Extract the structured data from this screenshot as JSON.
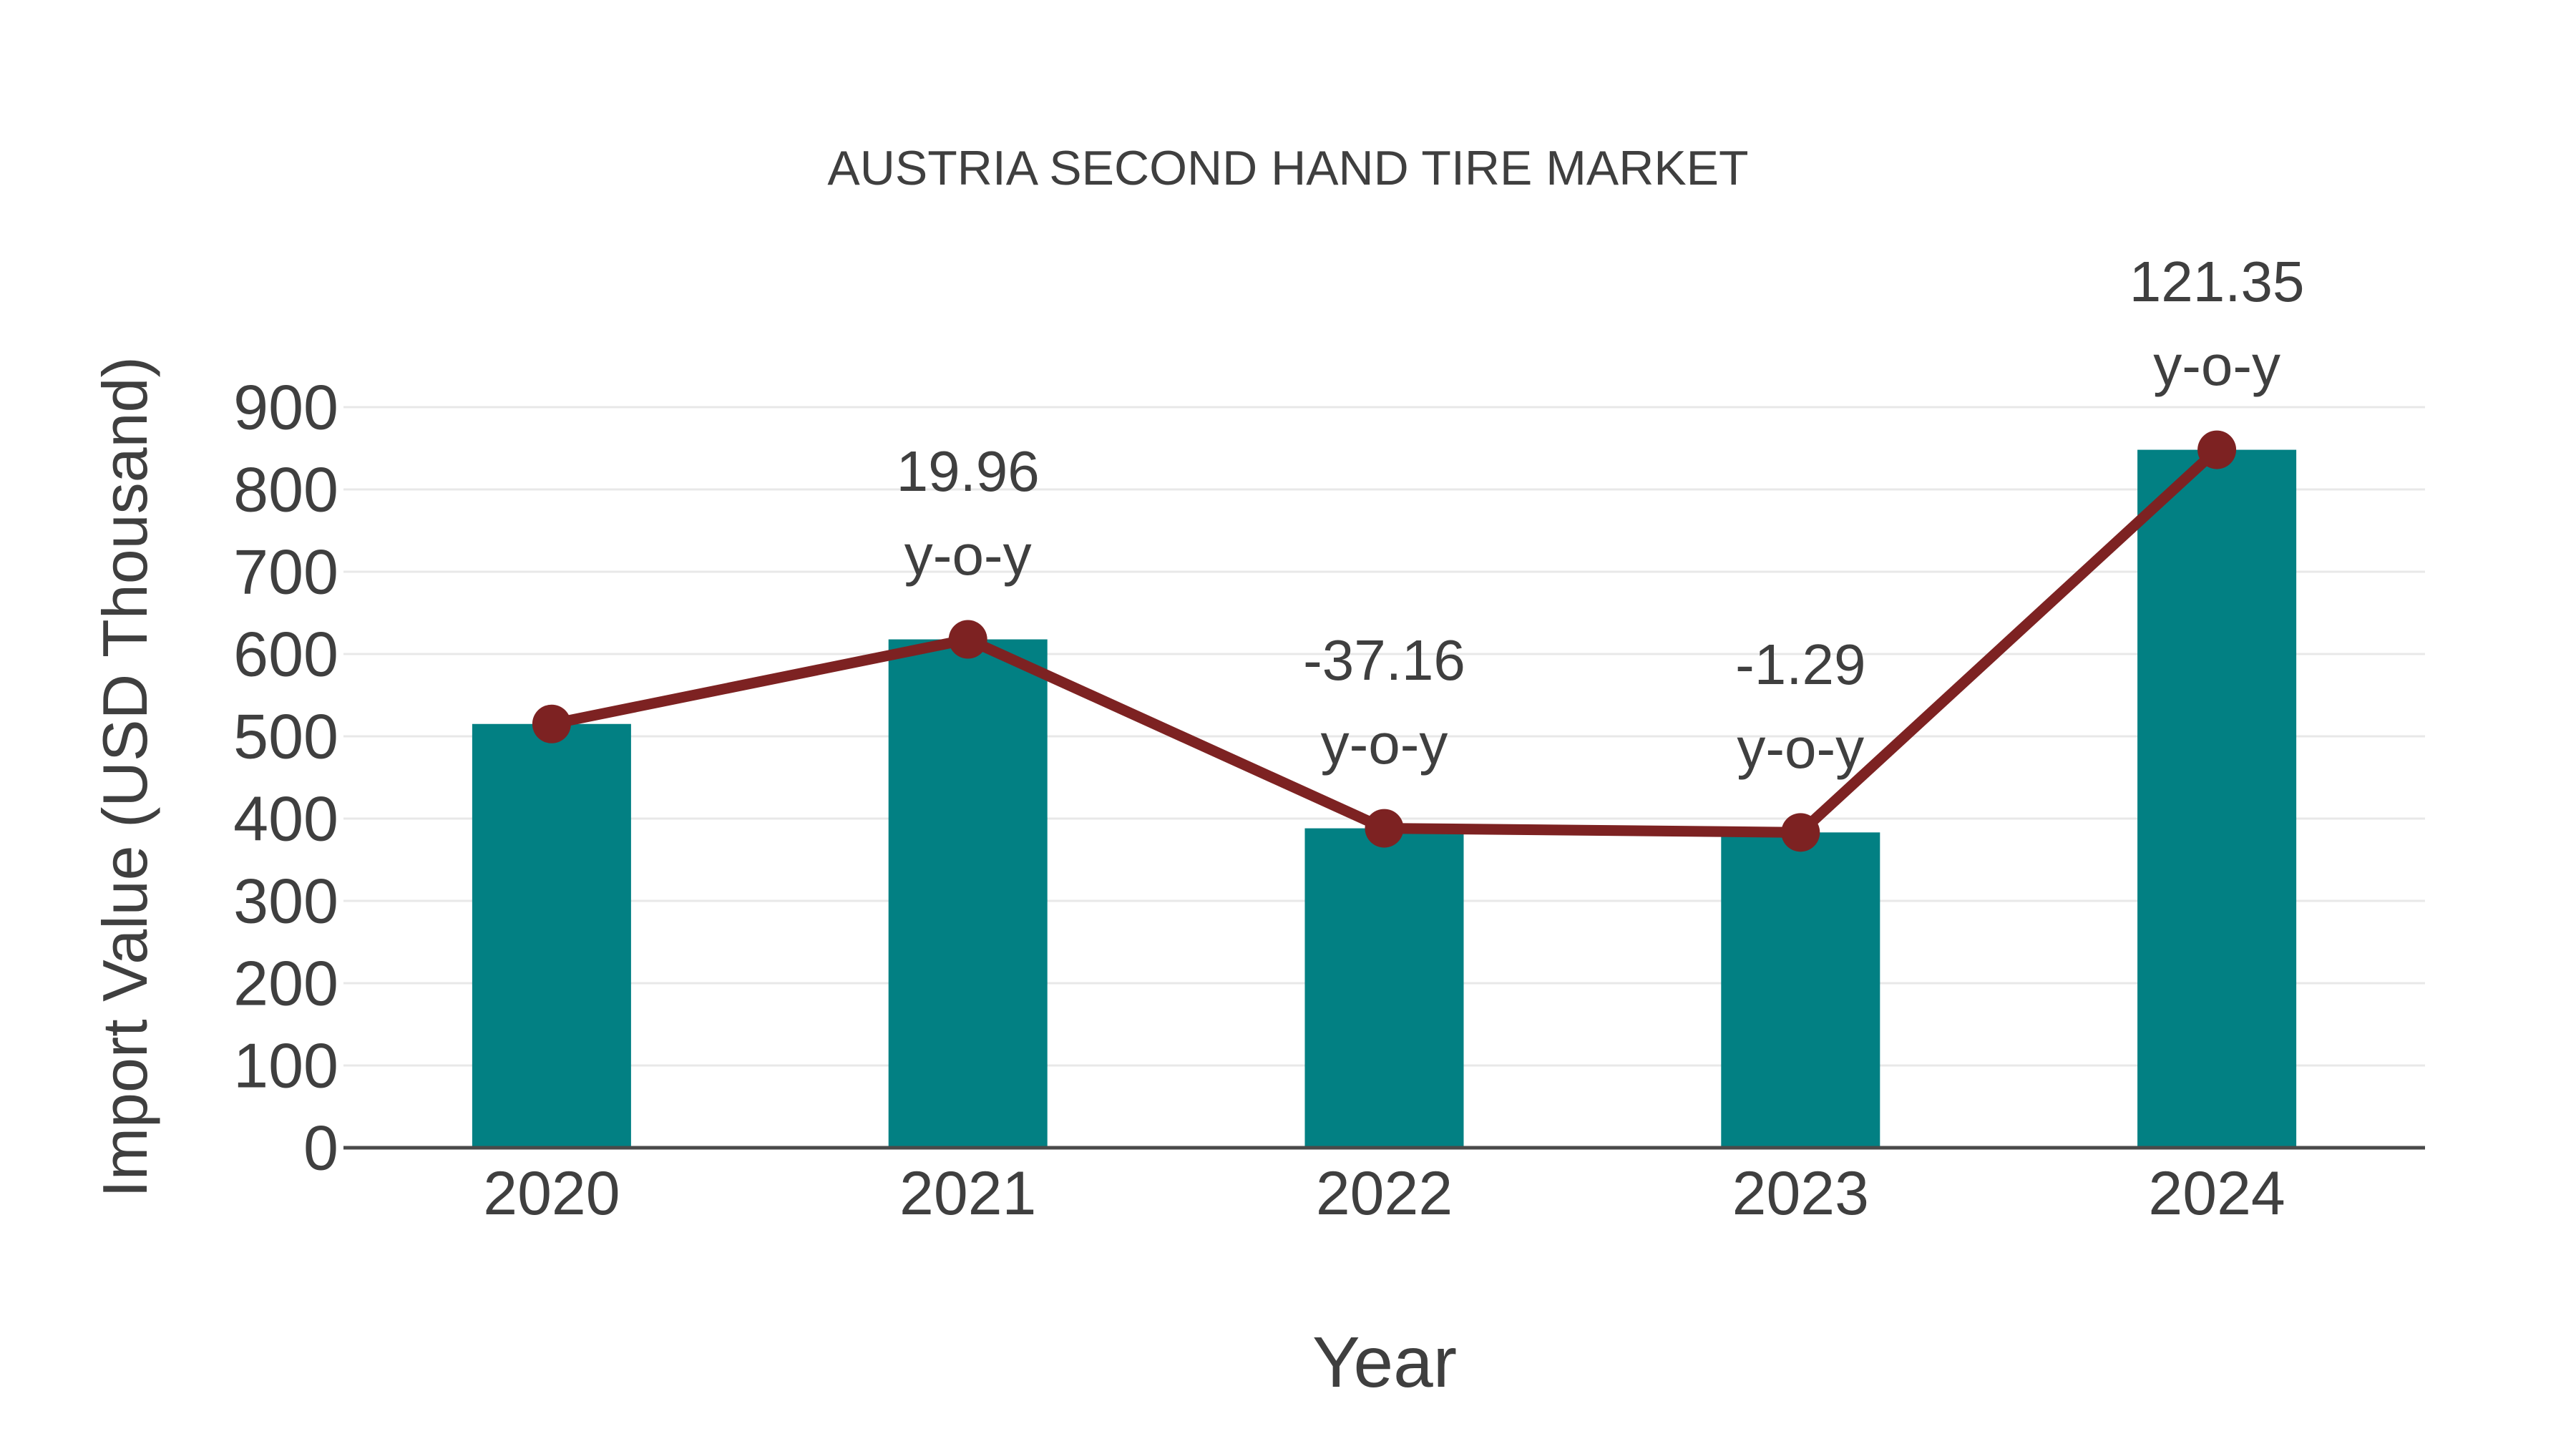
{
  "chart_data": {
    "type": "bar",
    "title": "AUSTRIA SECOND HAND TIRE MARKET",
    "xlabel": "Year",
    "ylabel": "Import Value (USD Thousand)",
    "categories": [
      "2020",
      "2021",
      "2022",
      "2023",
      "2024"
    ],
    "series": [
      {
        "name": "Import Value (USD Thousand)",
        "type": "bar",
        "color": "#028083",
        "values": [
          515,
          617.8,
          388.2,
          383.2,
          848.2
        ]
      },
      {
        "name": "y-o-y trend line",
        "type": "line",
        "color": "#7d2222",
        "values": [
          515,
          617.8,
          388.2,
          383.2,
          848.2
        ]
      }
    ],
    "annotations": [
      {
        "category": "2021",
        "line1": "19.96",
        "line2": "y-o-y"
      },
      {
        "category": "2022",
        "line1": "-37.16",
        "line2": "y-o-y"
      },
      {
        "category": "2023",
        "line1": "-1.29",
        "line2": "y-o-y"
      },
      {
        "category": "2024",
        "line1": "121.35",
        "line2": "y-o-y"
      }
    ],
    "ylim": [
      0,
      900
    ],
    "yticks": [
      0,
      100,
      200,
      300,
      400,
      500,
      600,
      700,
      800,
      900
    ],
    "grid": true,
    "legend": "none",
    "colors": {
      "bar": "#028083",
      "line": "#7d2222",
      "marker": "#7d2222",
      "text": "#3f3f3f",
      "grid": "#e8e8e8",
      "axis": "#4a4a4a",
      "background": "#ffffff"
    }
  }
}
